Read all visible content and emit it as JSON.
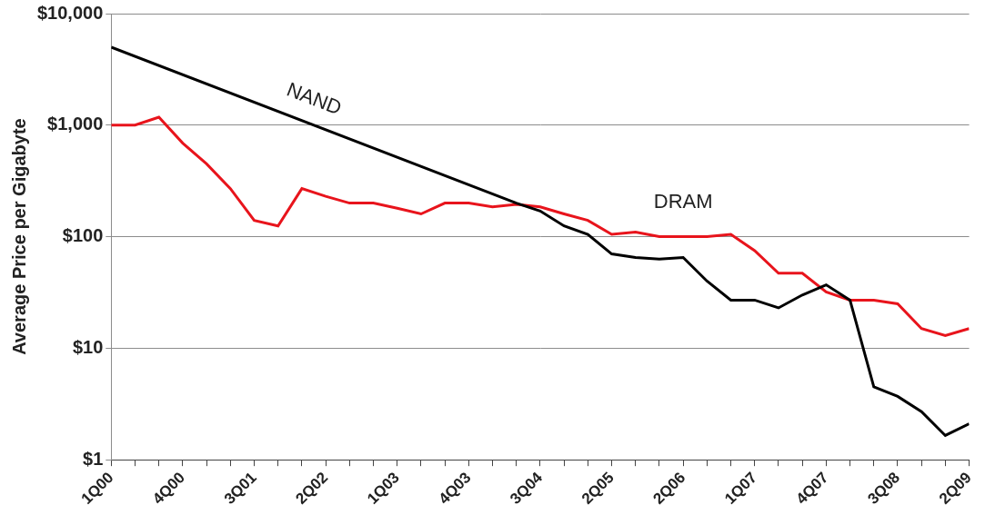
{
  "chart_data": {
    "type": "line",
    "y_label": "Average Price per Gigabyte",
    "categories": [
      "1Q00",
      null,
      null,
      "4Q00",
      null,
      null,
      "3Q01",
      null,
      null,
      "2Q02",
      null,
      null,
      "1Q03",
      null,
      null,
      "4Q03",
      null,
      null,
      "3Q04",
      null,
      null,
      "2Q05",
      null,
      null,
      "2Q06",
      null,
      null,
      "1Q07",
      null,
      null,
      "4Q07",
      null,
      null,
      "3Q08",
      null,
      null,
      "2Q09"
    ],
    "series": [
      {
        "name": "NAND",
        "color": "#000000",
        "line_style": "dotted",
        "marker": "none",
        "values": [
          5000,
          null,
          null,
          null,
          null,
          null,
          null,
          null,
          null,
          null,
          null,
          null,
          null,
          null,
          null,
          null,
          null,
          200,
          170,
          125,
          105,
          70,
          65,
          63,
          65,
          40,
          27,
          27,
          23,
          30,
          37,
          27,
          4.5,
          3.7,
          2.7,
          1.65,
          2.1
        ]
      },
      {
        "name": "DRAM",
        "color": "#e8141c",
        "line_style": "solid",
        "marker": "none",
        "values": [
          1000,
          1000,
          1180,
          690,
          450,
          270,
          140,
          125,
          270,
          230,
          200,
          200,
          180,
          160,
          200,
          200,
          185,
          195,
          185,
          160,
          140,
          105,
          110,
          100,
          100,
          100,
          105,
          75,
          47,
          47,
          32,
          27,
          27,
          25,
          15,
          13,
          15
        ]
      }
    ],
    "ylim": [
      1,
      10000
    ],
    "yticks": [
      {
        "value": 1,
        "label": "$1"
      },
      {
        "value": 10,
        "label": "$10"
      },
      {
        "value": 100,
        "label": "$100"
      },
      {
        "value": 1000,
        "label": "$1,000"
      },
      {
        "value": 10000,
        "label": "$10,000"
      }
    ],
    "log": "y",
    "grid": true
  }
}
